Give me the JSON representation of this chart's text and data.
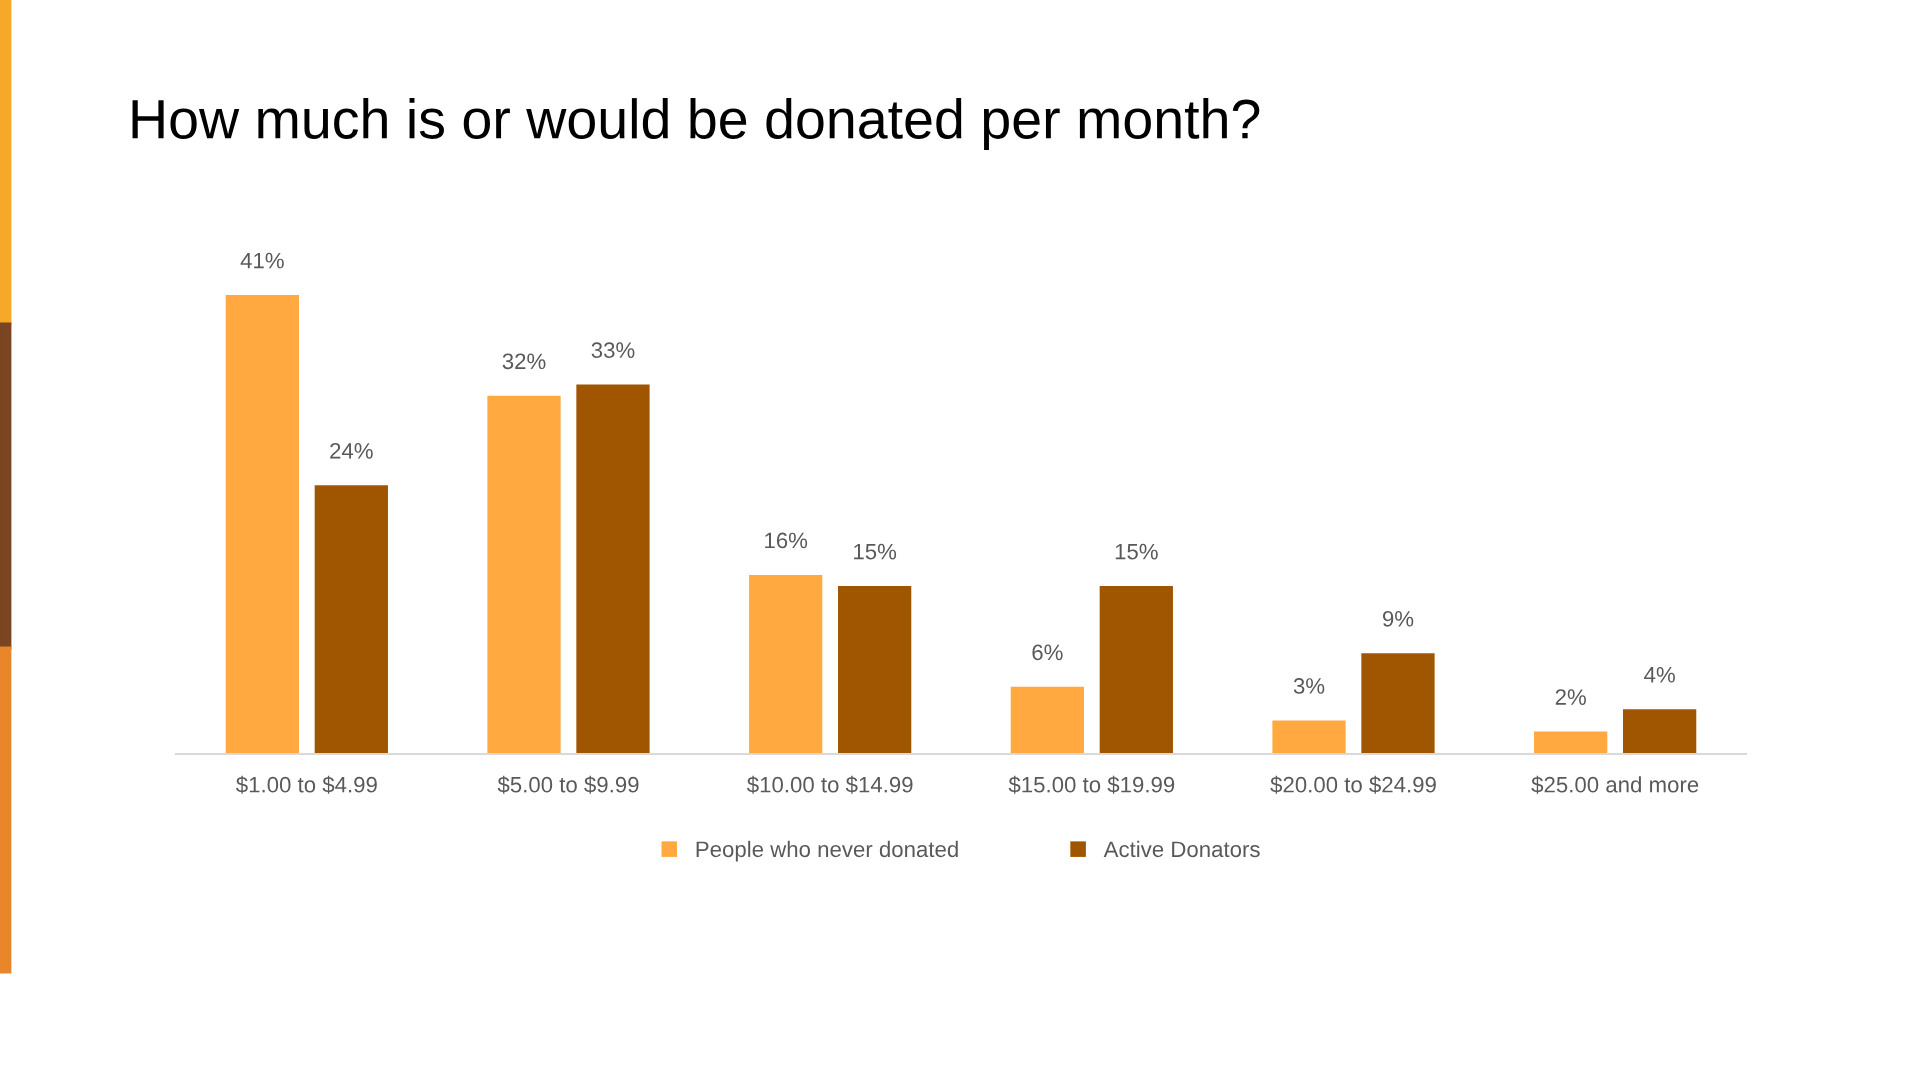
{
  "chart_data": {
    "type": "bar",
    "title": "How much is or would be donated per month?",
    "categories": [
      "$1.00 to $4.99",
      "$5.00 to $9.99",
      "$10.00 to $14.99",
      "$15.00 to $19.99",
      "$20.00 to $24.99",
      "$25.00 and more"
    ],
    "series": [
      {
        "name": "People who never donated",
        "color": "#ffa940",
        "values": [
          41,
          32,
          16,
          6,
          3,
          2
        ],
        "value_labels": [
          "41%",
          "32%",
          "16%",
          "6%",
          "3%",
          "2%"
        ]
      },
      {
        "name": "Active Donators",
        "color": "#a05500",
        "values": [
          24,
          33,
          15,
          15,
          9,
          4
        ],
        "value_labels": [
          "24%",
          "33%",
          "15%",
          "15%",
          "9%",
          "4%"
        ]
      }
    ],
    "legend": "bottom",
    "grid": false
  }
}
